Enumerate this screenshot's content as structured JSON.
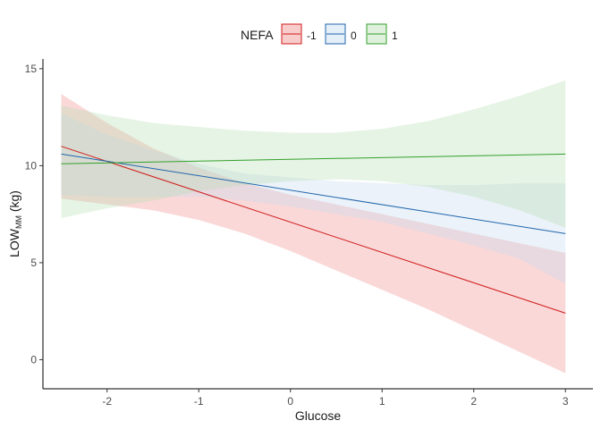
{
  "chart_data": {
    "type": "line",
    "xlabel": "Glucose",
    "ylabel_main": "LOW",
    "ylabel_sub": "MM",
    "ylabel_unit": " (kg)",
    "xlim": [
      -2.7,
      3.3
    ],
    "ylim": [
      -1.5,
      15.5
    ],
    "x_ticks": [
      -2,
      -1,
      0,
      1,
      2,
      3
    ],
    "y_ticks": [
      0,
      5,
      10,
      15
    ],
    "x_tick_labels": [
      "-2",
      "-1",
      "0",
      "1",
      "2",
      "3"
    ],
    "y_tick_labels": [
      "0",
      "5",
      "10",
      "15"
    ],
    "grid": false,
    "legend": {
      "title": "NEFA",
      "position": "top"
    },
    "series": [
      {
        "name": "-1",
        "color": "#d01c1c",
        "fill": "#f28e8e",
        "x": [
          -2.5,
          3.0
        ],
        "y": [
          11.0,
          2.4
        ],
        "ribbon_x": [
          -2.5,
          -2.0,
          -1.5,
          -1.0,
          -0.5,
          0.0,
          0.5,
          1.0,
          1.5,
          2.0,
          2.5,
          3.0
        ],
        "ribbon_lower": [
          8.3,
          8.0,
          7.7,
          7.2,
          6.5,
          5.6,
          4.6,
          3.6,
          2.6,
          1.5,
          0.4,
          -0.7
        ],
        "ribbon_upper": [
          13.7,
          12.2,
          10.9,
          9.9,
          9.1,
          8.5,
          8.0,
          7.5,
          7.0,
          6.5,
          6.0,
          5.5
        ]
      },
      {
        "name": "0",
        "color": "#2166ac",
        "fill": "#c6dbef",
        "x": [
          -2.5,
          3.0
        ],
        "y": [
          10.6,
          6.5
        ],
        "ribbon_x": [
          -2.5,
          -2.0,
          -1.5,
          -1.0,
          -0.5,
          0.0,
          0.5,
          1.0,
          1.5,
          2.0,
          2.5,
          3.0
        ],
        "ribbon_lower": [
          8.5,
          8.4,
          8.4,
          8.4,
          8.2,
          7.9,
          7.5,
          7.1,
          6.5,
          5.9,
          5.2,
          3.9
        ],
        "ribbon_upper": [
          12.7,
          11.6,
          10.8,
          10.1,
          9.6,
          9.4,
          9.2,
          9.1,
          9.0,
          9.0,
          9.1,
          9.1
        ]
      },
      {
        "name": "1",
        "color": "#33a02c",
        "fill": "#b8dfb4",
        "x": [
          -2.5,
          3.0
        ],
        "y": [
          10.1,
          10.6
        ],
        "ribbon_x": [
          -2.5,
          -2.0,
          -1.5,
          -1.0,
          -0.5,
          0.0,
          0.5,
          1.0,
          1.5,
          2.0,
          2.5,
          3.0
        ],
        "ribbon_lower": [
          7.3,
          7.8,
          8.2,
          8.7,
          9.0,
          9.2,
          9.3,
          9.2,
          8.9,
          8.4,
          7.7,
          6.8
        ],
        "ribbon_upper": [
          13.1,
          12.6,
          12.2,
          12.0,
          11.8,
          11.7,
          11.7,
          11.9,
          12.3,
          12.9,
          13.6,
          14.4
        ]
      }
    ]
  }
}
